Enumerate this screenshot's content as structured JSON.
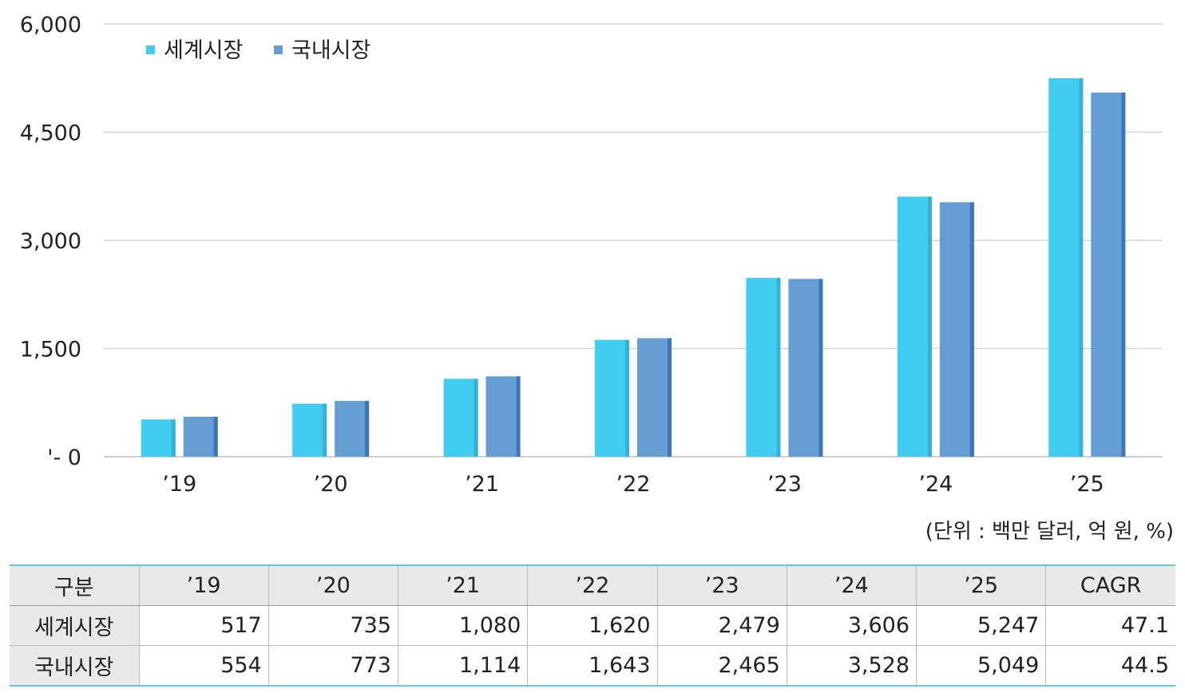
{
  "chart_data": {
    "type": "bar",
    "categories": [
      "’19",
      "’20",
      "’21",
      "’22",
      "’23",
      "’24",
      "’25"
    ],
    "series": [
      {
        "name": "세계시장",
        "values": [
          517,
          735,
          1080,
          1620,
          2479,
          3606,
          5247
        ],
        "color": "#41ccf2",
        "shade": "#2fb3da"
      },
      {
        "name": "국내시장",
        "values": [
          554,
          773,
          1114,
          1643,
          2465,
          3528,
          5049
        ],
        "color": "#659ed3",
        "shade": "#3d77bb"
      }
    ],
    "ylim": [
      0,
      6000
    ],
    "yticks": [
      0,
      1500,
      3000,
      4500,
      6000
    ],
    "ytick_labels": [
      "'- 0",
      "1,500",
      "3,000",
      "4,500",
      "6,000"
    ],
    "title": "",
    "xlabel": "",
    "ylabel": "",
    "grid": true,
    "legend": "top-left"
  },
  "unit_note": "(단위 : 백만 달러, 억 원, %)",
  "table": {
    "header": [
      "구분",
      "’19",
      "’20",
      "’21",
      "’22",
      "’23",
      "’24",
      "’25",
      "CAGR"
    ],
    "rows": [
      {
        "label": "세계시장",
        "values": [
          "517",
          "735",
          "1,080",
          "1,620",
          "2,479",
          "3,606",
          "5,247",
          "47.1"
        ]
      },
      {
        "label": "국내시장",
        "values": [
          "554",
          "773",
          "1,114",
          "1,643",
          "2,465",
          "3,528",
          "5,049",
          "44.5"
        ]
      }
    ]
  }
}
